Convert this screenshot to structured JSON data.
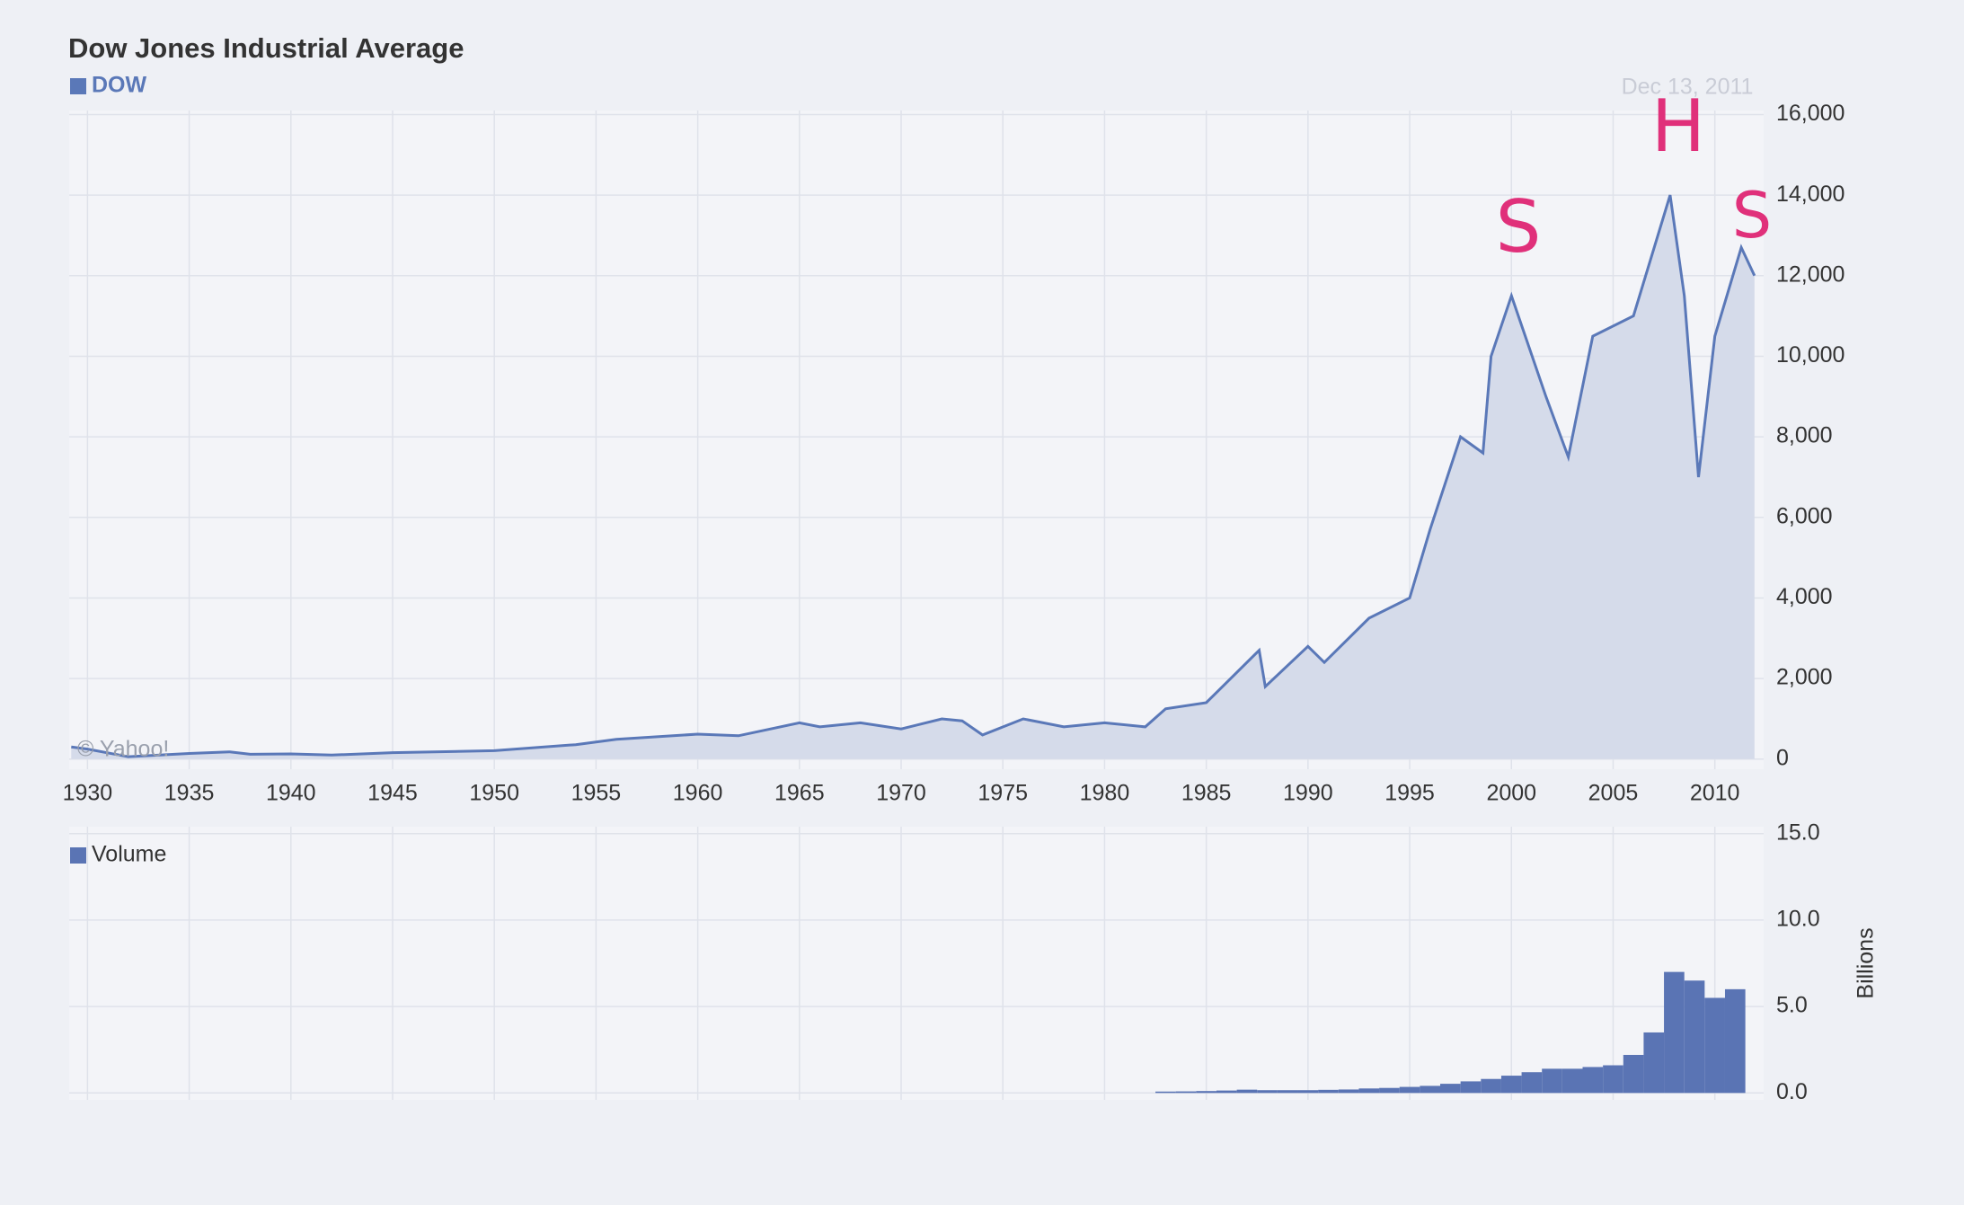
{
  "chart_data": [
    {
      "type": "area",
      "title": "Dow Jones Industrial Average",
      "date": "Dec 13, 2011",
      "watermark": "© Yahoo!",
      "annotations": [
        "S",
        "H",
        "S"
      ],
      "series": [
        {
          "name": "DOW",
          "color": "#5a78b8",
          "fill": "#d5dbea",
          "values": [
            300,
            250,
            60,
            140,
            180,
            120,
            130,
            100,
            160,
            210,
            360,
            490,
            620,
            580,
            900,
            800,
            900,
            750,
            1000,
            950,
            600,
            1000,
            800,
            900,
            800,
            1250,
            1400,
            2700,
            1800,
            2800,
            2400,
            3500,
            4000,
            5700,
            8000,
            7600,
            10000,
            11500,
            9000,
            7500,
            10500,
            11000,
            14000,
            11500,
            7000,
            10500,
            12700,
            12000
          ]
        }
      ],
      "x": [
        1929.2,
        1930,
        1932,
        1935,
        1937,
        1938,
        1940,
        1942,
        1945,
        1950,
        1954,
        1956,
        1960,
        1962,
        1965,
        1966,
        1968,
        1970,
        1972,
        1973,
        1974,
        1976,
        1978,
        1980,
        1982,
        1983,
        1985,
        1987.6,
        1987.9,
        1990,
        1990.8,
        1993,
        1995,
        1996,
        1997.5,
        1998.6,
        1999,
        2000,
        2001.7,
        2002.8,
        2004,
        2006,
        2007.8,
        2008.5,
        2009.2,
        2010,
        2011.3,
        2011.95
      ],
      "xlim": [
        1929.1,
        2012.4
      ],
      "xticks": [
        1930,
        1935,
        1940,
        1945,
        1950,
        1955,
        1960,
        1965,
        1970,
        1975,
        1980,
        1985,
        1990,
        1995,
        2000,
        2005,
        2010
      ],
      "ylim": [
        -250,
        16100
      ],
      "yticks": [
        0,
        {
          "value": 2000,
          "label": "2,000"
        },
        {
          "value": 4000,
          "label": "4,000"
        },
        {
          "value": 6000,
          "label": "6,000"
        },
        {
          "value": 8000,
          "label": "8,000"
        },
        {
          "value": 10000,
          "label": "10,000"
        },
        {
          "value": 12000,
          "label": "12,000"
        },
        {
          "value": 14000,
          "label": "14,000"
        },
        {
          "value": 16000,
          "label": "16,000"
        }
      ],
      "grid": true
    },
    {
      "type": "bar",
      "y_label": "Billions",
      "series": [
        {
          "name": "Volume",
          "color": "#5a74b4",
          "values": [
            0.08,
            0.09,
            0.11,
            0.14,
            0.19,
            0.16,
            0.16,
            0.16,
            0.18,
            0.2,
            0.26,
            0.29,
            0.35,
            0.41,
            0.53,
            0.67,
            0.81,
            1.0,
            1.2,
            1.4,
            1.4,
            1.5,
            1.6,
            2.2,
            3.5,
            7.0,
            6.5,
            5.5,
            6.0
          ]
        }
      ],
      "x": [
        1983,
        1984,
        1985,
        1986,
        1987,
        1988,
        1989,
        1990,
        1991,
        1992,
        1993,
        1994,
        1995,
        1996,
        1997,
        1998,
        1999,
        2000,
        2001,
        2002,
        2003,
        2004,
        2005,
        2006,
        2007,
        2008,
        2009,
        2010,
        2011
      ],
      "xlim": [
        1929.1,
        2012.4
      ],
      "xticks": [
        1930,
        1935,
        1940,
        1945,
        1950,
        1955,
        1960,
        1965,
        1970,
        1975,
        1980,
        1985,
        1990,
        1995,
        2000,
        2005,
        2010
      ],
      "ylim": [
        -0.4,
        15.4
      ],
      "yticks": [
        {
          "value": 0,
          "label": "0.0"
        },
        {
          "value": 5,
          "label": "5.0"
        },
        {
          "value": 10,
          "label": "10.0"
        },
        {
          "value": 15,
          "label": "15.0"
        }
      ],
      "grid": true
    }
  ]
}
